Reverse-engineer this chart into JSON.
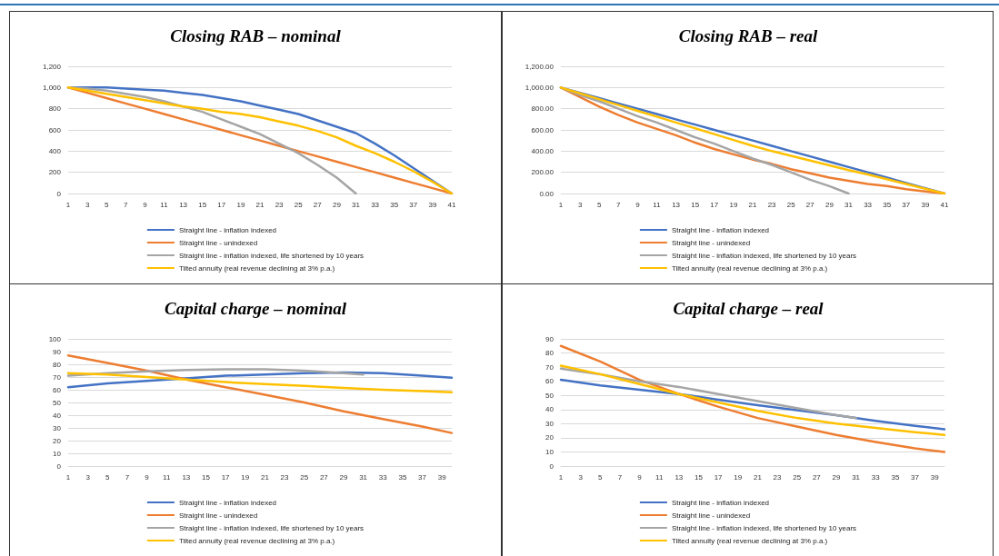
{
  "chart_data": [
    {
      "type": "line",
      "title": "Closing RAB – nominal",
      "x": [
        1,
        3,
        5,
        7,
        9,
        11,
        13,
        15,
        17,
        19,
        21,
        23,
        25,
        27,
        29,
        31,
        33,
        35,
        37,
        39,
        41
      ],
      "xlim": [
        1,
        41
      ],
      "xticks": [
        1,
        3,
        5,
        7,
        9,
        11,
        13,
        15,
        17,
        19,
        21,
        23,
        25,
        27,
        29,
        31,
        33,
        35,
        37,
        39,
        41
      ],
      "ylim": [
        0,
        1200
      ],
      "yticks": [
        0,
        200,
        400,
        600,
        800,
        {
          "value": 1000,
          "label": "1,000"
        },
        {
          "value": 1200,
          "label": "1,200"
        }
      ],
      "grid": "y",
      "legend": "bottom",
      "marker": "none",
      "line_style": "solid",
      "series": [
        {
          "name": "Straight line - inflation indexed",
          "color": "#4472c4",
          "values": [
            1000,
            1000,
            1000,
            990,
            980,
            970,
            950,
            930,
            900,
            870,
            830,
            790,
            750,
            690,
            630,
            570,
            470,
            360,
            240,
            120,
            0
          ]
        },
        {
          "name": "Straight line - unindexed",
          "color": "#ed7d31",
          "values": [
            1000,
            950,
            900,
            850,
            800,
            750,
            700,
            650,
            600,
            550,
            500,
            450,
            400,
            350,
            300,
            250,
            200,
            150,
            100,
            50,
            0
          ]
        },
        {
          "name": "Straight line - inflation indexed, life shortened by 10 years",
          "color": "#a5a5a5",
          "x": [
            1,
            3,
            5,
            7,
            9,
            11,
            13,
            15,
            17,
            19,
            21,
            23,
            25,
            27,
            29,
            31
          ],
          "values": [
            1000,
            990,
            970,
            940,
            910,
            870,
            820,
            770,
            700,
            630,
            560,
            470,
            380,
            270,
            150,
            0
          ]
        },
        {
          "name": "Tilted annuity (real revenue declining at 3% p.a.)",
          "color": "#ffc000",
          "values": [
            1000,
            970,
            940,
            910,
            880,
            850,
            820,
            800,
            770,
            750,
            720,
            680,
            640,
            590,
            530,
            450,
            380,
            300,
            210,
            110,
            0
          ]
        }
      ]
    },
    {
      "type": "line",
      "title": "Closing RAB – real",
      "x": [
        1,
        3,
        5,
        7,
        9,
        11,
        13,
        15,
        17,
        19,
        21,
        23,
        25,
        27,
        29,
        31,
        33,
        35,
        37,
        39,
        41
      ],
      "xlim": [
        1,
        41
      ],
      "xticks": [
        1,
        3,
        5,
        7,
        9,
        11,
        13,
        15,
        17,
        19,
        21,
        23,
        25,
        27,
        29,
        31,
        33,
        35,
        37,
        39,
        41
      ],
      "ylim": [
        0,
        1200
      ],
      "yticks": [
        {
          "value": 0,
          "label": "0.00"
        },
        {
          "value": 200,
          "label": "200.00"
        },
        {
          "value": 400,
          "label": "400.00"
        },
        {
          "value": 600,
          "label": "600.00"
        },
        {
          "value": 800,
          "label": "800.00"
        },
        {
          "value": 1000,
          "label": "1,000.00"
        },
        {
          "value": 1200,
          "label": "1,200.00"
        }
      ],
      "grid": "y",
      "legend": "bottom",
      "marker": "none",
      "line_style": "solid",
      "series": [
        {
          "name": "Straight line - inflation indexed",
          "color": "#4472c4",
          "values": [
            1000,
            950,
            900,
            850,
            800,
            750,
            700,
            650,
            600,
            550,
            500,
            450,
            400,
            350,
            300,
            250,
            200,
            150,
            100,
            50,
            0
          ]
        },
        {
          "name": "Straight line - unindexed",
          "color": "#ed7d31",
          "values": [
            1000,
            910,
            820,
            740,
            670,
            610,
            550,
            480,
            420,
            370,
            320,
            280,
            230,
            190,
            150,
            120,
            90,
            70,
            40,
            20,
            0
          ]
        },
        {
          "name": "Straight line - inflation indexed, life shortened by 10 years",
          "color": "#a5a5a5",
          "x": [
            1,
            3,
            5,
            7,
            9,
            11,
            13,
            15,
            17,
            19,
            21,
            23,
            25,
            27,
            29,
            31
          ],
          "values": [
            1000,
            930,
            870,
            800,
            730,
            670,
            600,
            530,
            470,
            400,
            330,
            270,
            200,
            130,
            70,
            0
          ]
        },
        {
          "name": "Tilted annuity (real revenue declining at 3% p.a.)",
          "color": "#ffc000",
          "values": [
            1000,
            945,
            890,
            835,
            780,
            725,
            670,
            615,
            560,
            505,
            450,
            400,
            355,
            310,
            265,
            220,
            180,
            135,
            90,
            45,
            0
          ]
        }
      ]
    },
    {
      "type": "line",
      "title": "Capital charge – nominal",
      "x": [
        1,
        5,
        9,
        13,
        17,
        21,
        25,
        29,
        33,
        37,
        40
      ],
      "xlim": [
        1,
        40
      ],
      "xticks": [
        1,
        3,
        5,
        7,
        9,
        11,
        13,
        15,
        17,
        19,
        21,
        23,
        25,
        27,
        29,
        31,
        33,
        35,
        37,
        39
      ],
      "ylim": [
        0,
        100
      ],
      "yticks": [
        0,
        10,
        20,
        30,
        40,
        50,
        60,
        70,
        80,
        90,
        100
      ],
      "grid": "y",
      "legend": "bottom",
      "marker": "none",
      "line_style": "solid",
      "series": [
        {
          "name": "Straight line - inflation indexed",
          "color": "#4472c4",
          "values": [
            62,
            65,
            67,
            69,
            71,
            72,
            73,
            73.5,
            73,
            71,
            69.5
          ]
        },
        {
          "name": "Straight line - unindexed",
          "color": "#ed7d31",
          "values": [
            87,
            81,
            75,
            68,
            62,
            56,
            50,
            43,
            37,
            31,
            26
          ]
        },
        {
          "name": "Straight line - inflation indexed, life shortened by 10 years",
          "color": "#a5a5a5",
          "x": [
            1,
            5,
            9,
            13,
            17,
            21,
            25,
            29,
            31
          ],
          "values": [
            71,
            73,
            74.5,
            75.5,
            76,
            76,
            75,
            73,
            72
          ]
        },
        {
          "name": "Tilted annuity (real revenue declining at 3% p.a.)",
          "color": "#ffc000",
          "values": [
            73,
            72,
            70,
            68,
            66,
            64.5,
            63,
            61.5,
            60,
            59,
            58
          ]
        }
      ]
    },
    {
      "type": "line",
      "title": "Capital charge – real",
      "x": [
        1,
        5,
        9,
        13,
        17,
        21,
        25,
        29,
        33,
        37,
        40
      ],
      "xlim": [
        1,
        40
      ],
      "xticks": [
        1,
        3,
        5,
        7,
        9,
        11,
        13,
        15,
        17,
        19,
        21,
        23,
        25,
        27,
        29,
        31,
        33,
        35,
        37,
        39
      ],
      "ylim": [
        0,
        90
      ],
      "yticks": [
        0,
        10,
        20,
        30,
        40,
        50,
        60,
        70,
        80,
        90
      ],
      "grid": "y",
      "legend": "bottom",
      "marker": "none",
      "line_style": "solid",
      "series": [
        {
          "name": "Straight line - inflation indexed",
          "color": "#4472c4",
          "values": [
            61,
            57,
            54,
            51,
            47,
            43,
            39.5,
            36,
            32,
            28.5,
            26
          ]
        },
        {
          "name": "Straight line - unindexed",
          "color": "#ed7d31",
          "values": [
            85,
            74,
            61,
            51,
            42,
            34,
            28,
            22,
            17,
            12.5,
            10
          ]
        },
        {
          "name": "Straight line - inflation indexed, life shortened by 10 years",
          "color": "#a5a5a5",
          "x": [
            1,
            5,
            9,
            13,
            17,
            21,
            25,
            29,
            31
          ],
          "values": [
            69,
            65,
            60,
            56,
            51,
            46,
            41,
            36,
            34
          ]
        },
        {
          "name": "Tilted annuity (real revenue declining at 3% p.a.)",
          "color": "#ffc000",
          "values": [
            71,
            65,
            58,
            51,
            45,
            39,
            34,
            30,
            27,
            24,
            22
          ]
        }
      ]
    }
  ]
}
